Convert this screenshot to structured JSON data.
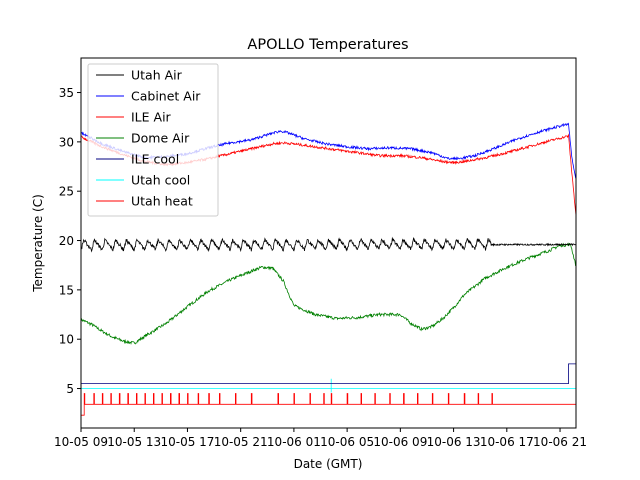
{
  "chart_data": {
    "type": "line",
    "title": "APOLLO Temperatures",
    "xlabel": "Date (GMT)",
    "ylabel": "Temperature (C)",
    "xlim": [
      0,
      46.5
    ],
    "ylim": [
      1,
      38.5
    ],
    "yticks": [
      5,
      10,
      15,
      20,
      25,
      30,
      35
    ],
    "xticks": [
      {
        "x": 0,
        "label": "10-05 09"
      },
      {
        "x": 5,
        "label": "10-05 13"
      },
      {
        "x": 10,
        "label": "10-05 17"
      },
      {
        "x": 15,
        "label": "10-05 21"
      },
      {
        "x": 20,
        "label": "10-06 01"
      },
      {
        "x": 25,
        "label": "10-06 05"
      },
      {
        "x": 30,
        "label": "10-06 09"
      },
      {
        "x": 35,
        "label": "10-06 13"
      },
      {
        "x": 40,
        "label": "10-06 17"
      },
      {
        "x": 45,
        "label": "10-06 21"
      }
    ],
    "legend_position": "top-left",
    "series": [
      {
        "name": "Utah Air",
        "color": "#000000",
        "style": "sawtooth",
        "x": [
          0,
          46.5
        ],
        "y": [
          19.5,
          19.6
        ],
        "cycle_hours": 1.0,
        "amplitude": 1.0,
        "flat_after": 38.5
      },
      {
        "name": "Cabinet Air",
        "color": "#0000ff",
        "x": [
          0,
          2,
          4,
          6,
          8,
          10,
          12,
          14,
          16,
          18,
          18.8,
          19.5,
          21,
          23,
          25,
          27,
          29,
          31,
          33,
          34.5,
          35.5,
          37,
          39,
          41,
          43,
          45,
          45.8,
          46.1,
          46.5
        ],
        "y": [
          30.9,
          29.8,
          29.0,
          28.4,
          28.5,
          28.8,
          29.4,
          29.9,
          30.2,
          30.9,
          31.1,
          30.9,
          30.3,
          29.8,
          29.5,
          29.3,
          29.4,
          29.3,
          28.9,
          28.3,
          28.3,
          28.6,
          29.4,
          30.3,
          31.0,
          31.6,
          31.8,
          28.5,
          26.1
        ]
      },
      {
        "name": "ILE Air",
        "color": "#ff0000",
        "x": [
          0,
          2,
          4,
          6,
          8,
          10,
          12,
          14,
          16,
          18,
          19,
          20,
          22,
          24,
          26,
          28,
          30,
          32,
          34,
          35,
          36,
          38,
          40,
          42,
          44,
          45.8,
          46.1,
          46.5
        ],
        "y": [
          30.5,
          29.5,
          28.7,
          28.0,
          27.7,
          27.9,
          28.3,
          28.8,
          29.3,
          29.8,
          29.9,
          29.8,
          29.5,
          29.2,
          28.9,
          28.6,
          28.6,
          28.4,
          28.0,
          27.9,
          28.0,
          28.4,
          28.9,
          29.5,
          30.1,
          30.6,
          27.0,
          22.5
        ]
      },
      {
        "name": "Dome Air",
        "color": "#008000",
        "x": [
          0,
          1,
          2,
          3,
          4,
          5,
          6,
          8,
          10,
          12,
          14,
          16,
          17,
          18,
          19,
          20,
          22,
          24,
          26,
          28,
          30,
          31,
          32,
          33,
          34,
          35,
          36,
          38,
          40,
          42,
          44,
          45,
          46,
          46.5
        ],
        "y": [
          12.0,
          11.5,
          10.8,
          10.2,
          9.8,
          9.6,
          10.3,
          11.6,
          13.3,
          14.9,
          16.0,
          16.9,
          17.3,
          17.2,
          15.9,
          13.4,
          12.5,
          12.1,
          12.2,
          12.5,
          12.5,
          11.6,
          11.0,
          11.3,
          12.1,
          13.2,
          14.5,
          16.2,
          17.3,
          18.2,
          19.0,
          19.5,
          19.6,
          17.4
        ]
      },
      {
        "name": "ILE cool",
        "color": "#000080",
        "x": [
          0,
          45.8,
          45.8,
          46.5
        ],
        "y": [
          5.5,
          5.5,
          7.5,
          7.5
        ]
      },
      {
        "name": "Utah cool",
        "color": "#00ffff",
        "x": [
          0,
          46.5
        ],
        "y": [
          5.0,
          5.0
        ],
        "spikes_at": [
          23.5
        ],
        "spike_height": 6.0
      },
      {
        "name": "Utah heat",
        "color": "#ff0000",
        "x": [
          0,
          46.5
        ],
        "y": [
          3.4,
          3.4
        ],
        "base_start": 2.3,
        "base_start_until": 0.3,
        "spike_height": 4.5,
        "spikes_at": [
          0.3,
          1.2,
          2.0,
          2.8,
          3.6,
          4.4,
          5.2,
          6.0,
          6.8,
          7.6,
          8.4,
          9.2,
          10.0,
          11.0,
          12.0,
          13.0,
          14.5,
          16.0,
          18.5,
          20.0,
          21.5,
          22.8,
          23.5,
          25.0,
          26.3,
          27.6,
          29.0,
          30.3,
          31.6,
          33.0,
          34.5,
          36.0,
          37.3,
          38.6
        ]
      }
    ]
  }
}
